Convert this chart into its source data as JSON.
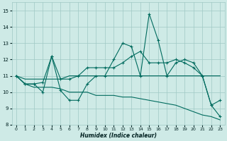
{
  "title": "",
  "xlabel": "Humidex (Indice chaleur)",
  "xlim": [
    -0.5,
    23.5
  ],
  "ylim": [
    8,
    15.5
  ],
  "yticks": [
    8,
    9,
    10,
    11,
    12,
    13,
    14,
    15
  ],
  "xticks": [
    0,
    1,
    2,
    3,
    4,
    5,
    6,
    7,
    8,
    9,
    10,
    11,
    12,
    13,
    14,
    15,
    16,
    17,
    18,
    19,
    20,
    21,
    22,
    23
  ],
  "bg_color": "#ceeae6",
  "grid_color": "#a0c8c4",
  "line_color": "#006b5e",
  "series": {
    "s0": [
      11.0,
      10.5,
      10.5,
      10.0,
      12.2,
      10.1,
      9.5,
      9.5,
      10.5,
      11.0,
      11.0,
      12.0,
      13.0,
      12.8,
      11.0,
      14.8,
      13.2,
      11.0,
      11.8,
      12.0,
      11.8,
      11.0,
      9.2,
      8.5
    ],
    "s1": [
      11.0,
      10.5,
      10.5,
      10.6,
      12.2,
      10.8,
      10.8,
      11.0,
      11.5,
      11.5,
      11.5,
      11.5,
      11.8,
      12.2,
      12.5,
      11.8,
      11.8,
      11.8,
      12.0,
      11.8,
      11.5,
      11.0,
      9.2,
      9.5
    ],
    "s2": [
      11.0,
      10.8,
      10.8,
      10.8,
      10.8,
      10.8,
      11.0,
      11.0,
      11.0,
      11.0,
      11.0,
      11.0,
      11.0,
      11.0,
      11.0,
      11.0,
      11.0,
      11.0,
      11.0,
      11.0,
      11.0,
      11.0,
      11.0,
      11.0
    ],
    "s3": [
      11.0,
      10.5,
      10.3,
      10.3,
      10.3,
      10.2,
      10.0,
      10.0,
      10.0,
      9.8,
      9.8,
      9.8,
      9.7,
      9.7,
      9.6,
      9.5,
      9.4,
      9.3,
      9.2,
      9.0,
      8.8,
      8.6,
      8.5,
      8.3
    ]
  },
  "markers_s0": [
    0,
    1,
    2,
    3,
    4,
    5,
    6,
    7,
    8,
    9,
    10,
    11,
    12,
    13,
    14,
    15,
    16,
    17,
    18,
    19,
    20,
    21,
    22,
    23
  ],
  "markers_s1": [
    0,
    4,
    8,
    11,
    13,
    14,
    15,
    16,
    18,
    21,
    22,
    23
  ],
  "markers_s2": [],
  "markers_s3": []
}
